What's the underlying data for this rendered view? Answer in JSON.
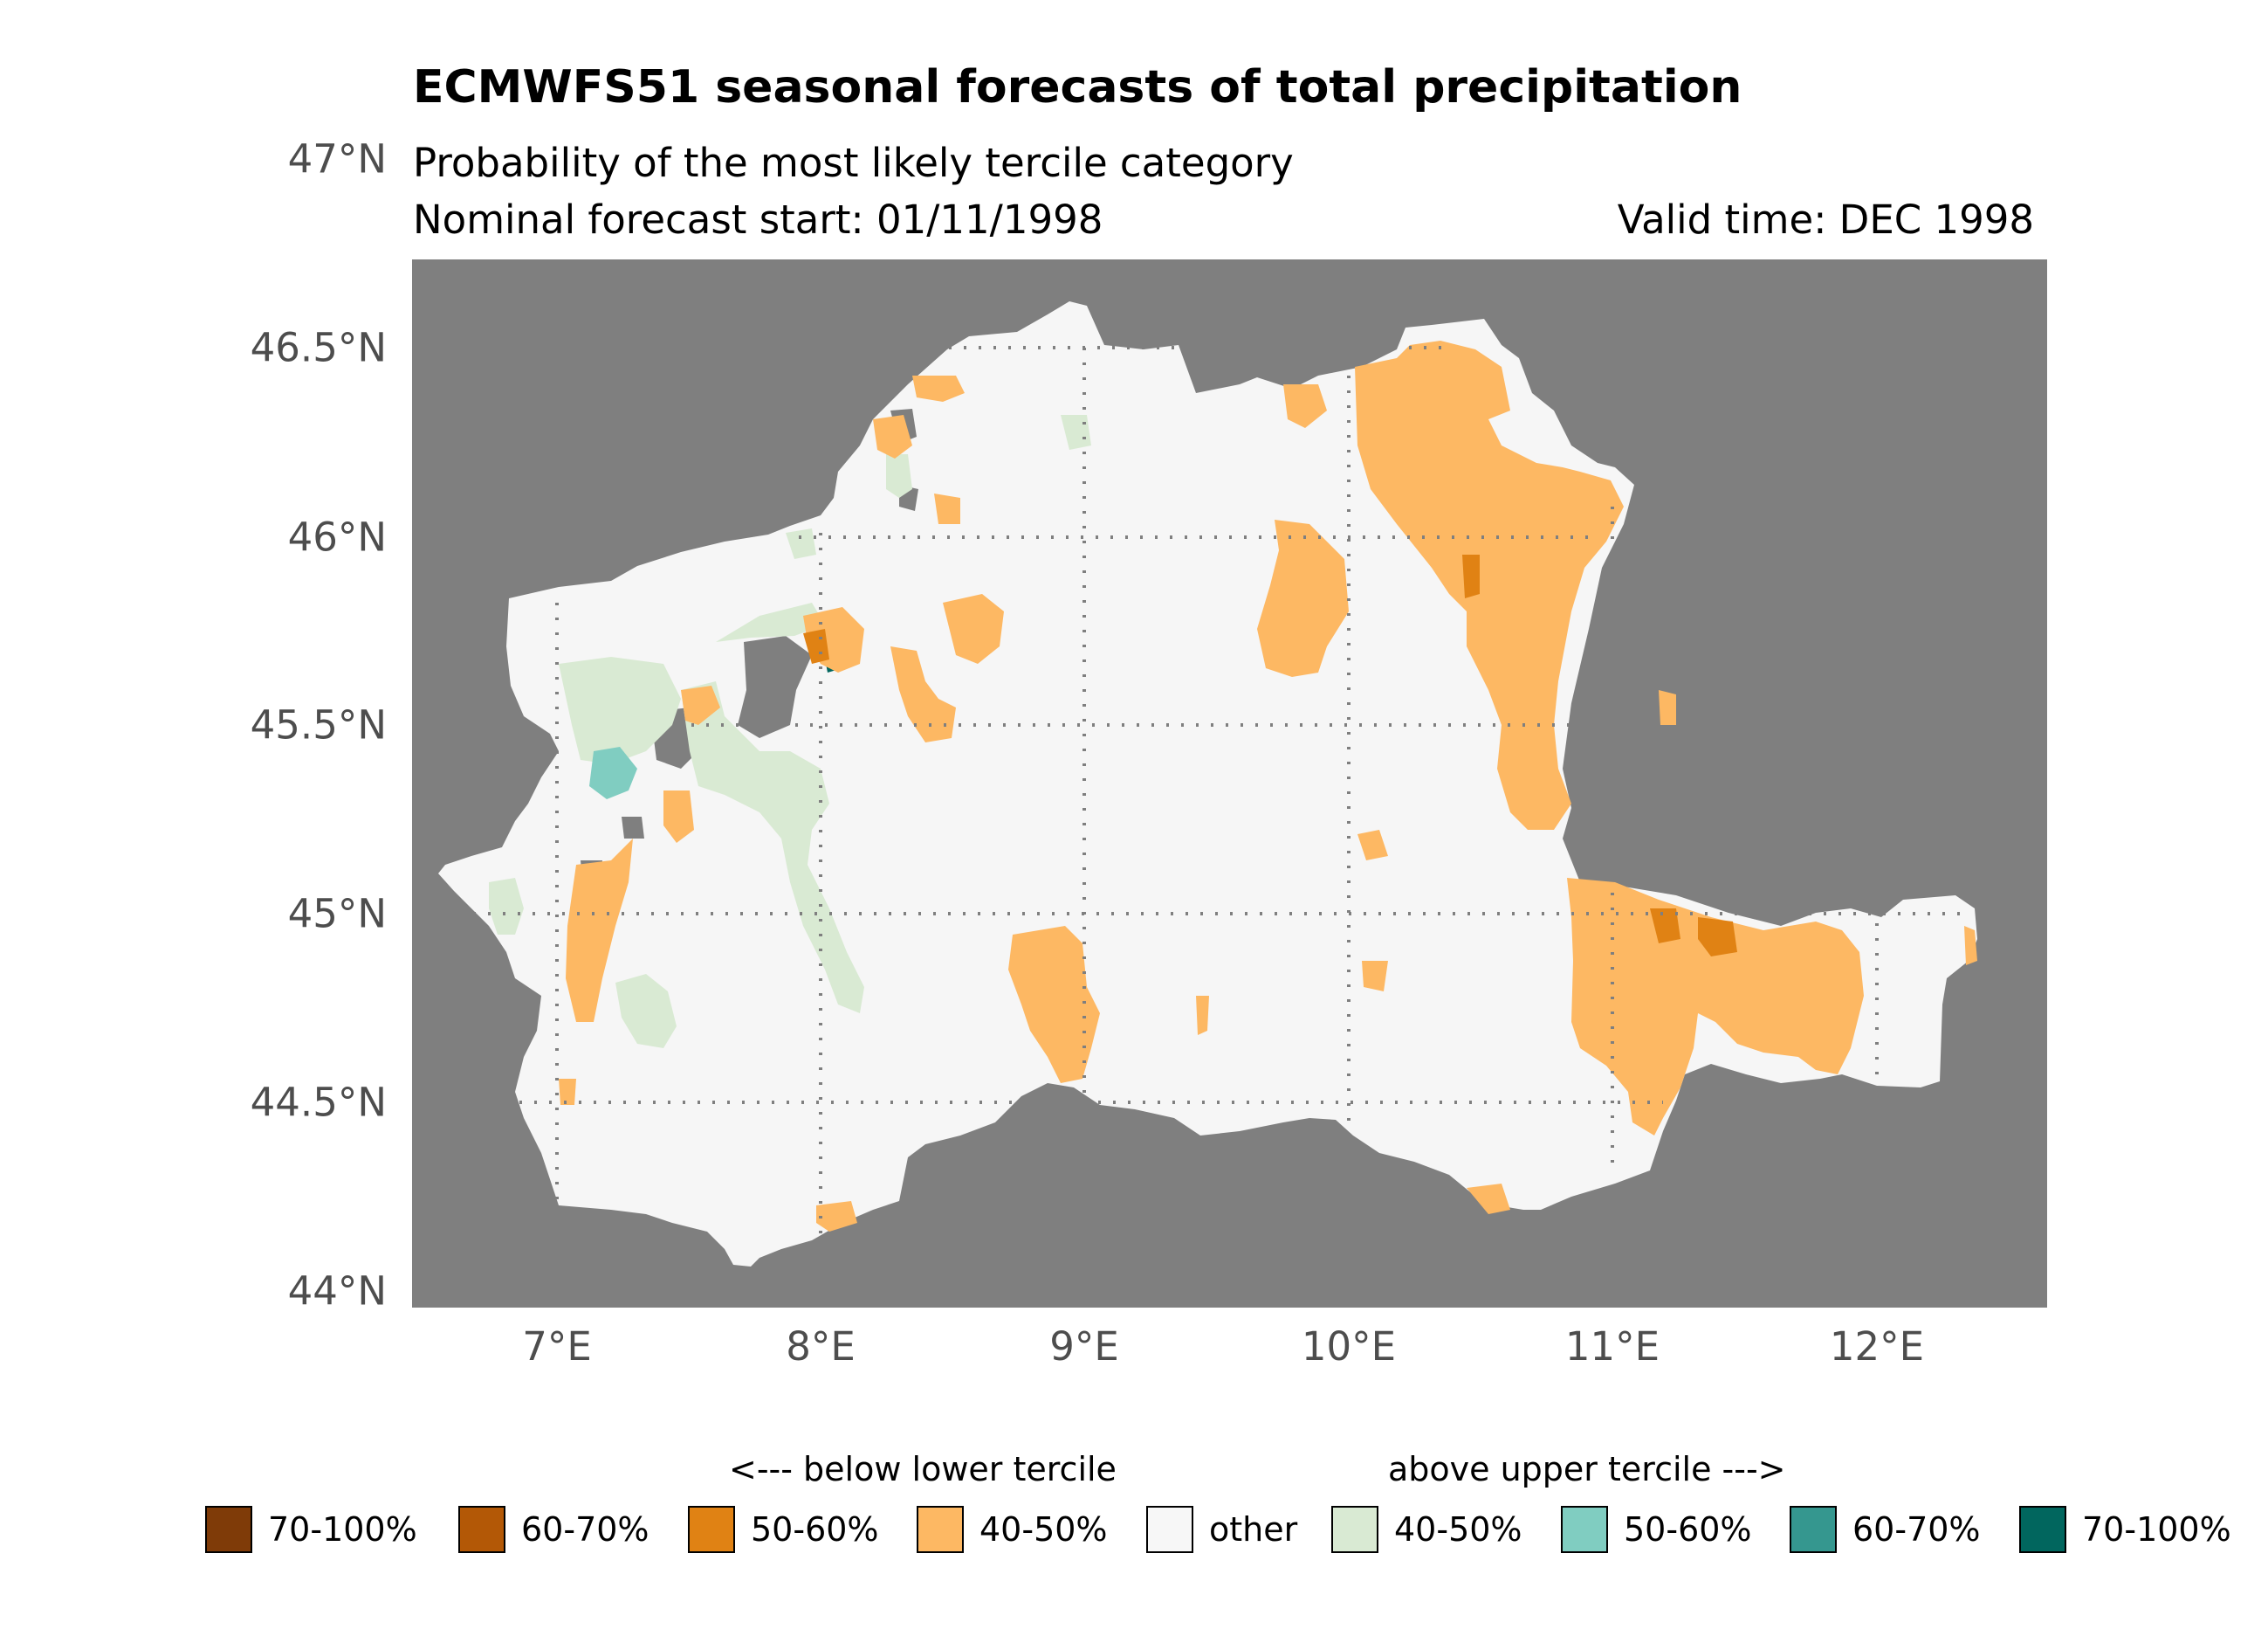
{
  "header": {
    "title": "ECMWFS51 seasonal forecasts of total precipitation",
    "subtitle": "Probability of the most likely tercile category",
    "forecast_start": "Nominal forecast start: 01/11/1998",
    "valid_time": "Valid time: DEC 1998"
  },
  "axes": {
    "y_ticks": [
      "47°N",
      "46.5°N",
      "46°N",
      "45.5°N",
      "45°N",
      "44.5°N",
      "44°N"
    ],
    "x_ticks": [
      "7°E",
      "8°E",
      "9°E",
      "10°E",
      "11°E",
      "12°E"
    ]
  },
  "colors": {
    "background_panel": "#7f7f7f",
    "land_other": "#f5f5f5",
    "grid": "#7f7f7f"
  },
  "legend": {
    "below_label": "<--- below lower tercile",
    "above_label": "above upper tercile --->",
    "items": [
      {
        "label": "70-100%",
        "color": "#7f3b08"
      },
      {
        "label": "60-70%",
        "color": "#b35806"
      },
      {
        "label": "50-60%",
        "color": "#e08214"
      },
      {
        "label": "40-50%",
        "color": "#fdb863"
      },
      {
        "label": "other",
        "color": "#f7f7f7"
      },
      {
        "label": "40-50%",
        "color": "#d9ead3"
      },
      {
        "label": "50-60%",
        "color": "#80cdc1"
      },
      {
        "label": "60-70%",
        "color": "#35978f"
      },
      {
        "label": "70-100%",
        "color": "#01665e"
      }
    ]
  }
}
